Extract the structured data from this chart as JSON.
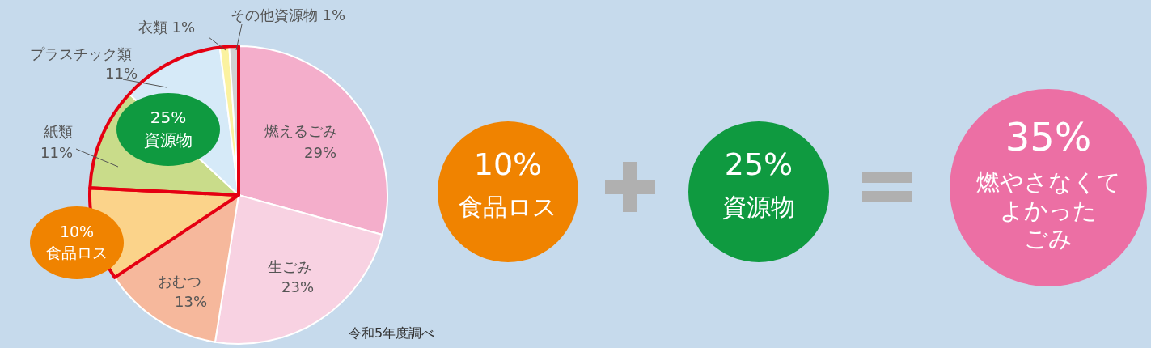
{
  "chart_data": {
    "type": "pie",
    "categories": [
      "燃えるごみ",
      "生ごみ",
      "おむつ",
      "食品ロス",
      "紙類",
      "プラスチック類",
      "衣類",
      "その他資源物"
    ],
    "values": [
      29,
      23,
      13,
      10,
      11,
      11,
      1,
      1
    ],
    "value_labels": [
      "29%",
      "23%",
      "13%",
      "10%",
      "11%",
      "11%",
      "1%",
      "1%"
    ],
    "colors": [
      "#f4aecb",
      "#f8d2e2",
      "#f6b89c",
      "#fbd38a",
      "#c9dc8a",
      "#d6eaf8",
      "#fbf2a0",
      "#d0d0d0"
    ],
    "annotations": [
      "25%",
      "資源物",
      "10%",
      "食品ロス",
      "25%",
      "資源物",
      "35%",
      "燃やさなくて",
      "よかった",
      "ごみ",
      "令和5年度調べ"
    ]
  }
}
